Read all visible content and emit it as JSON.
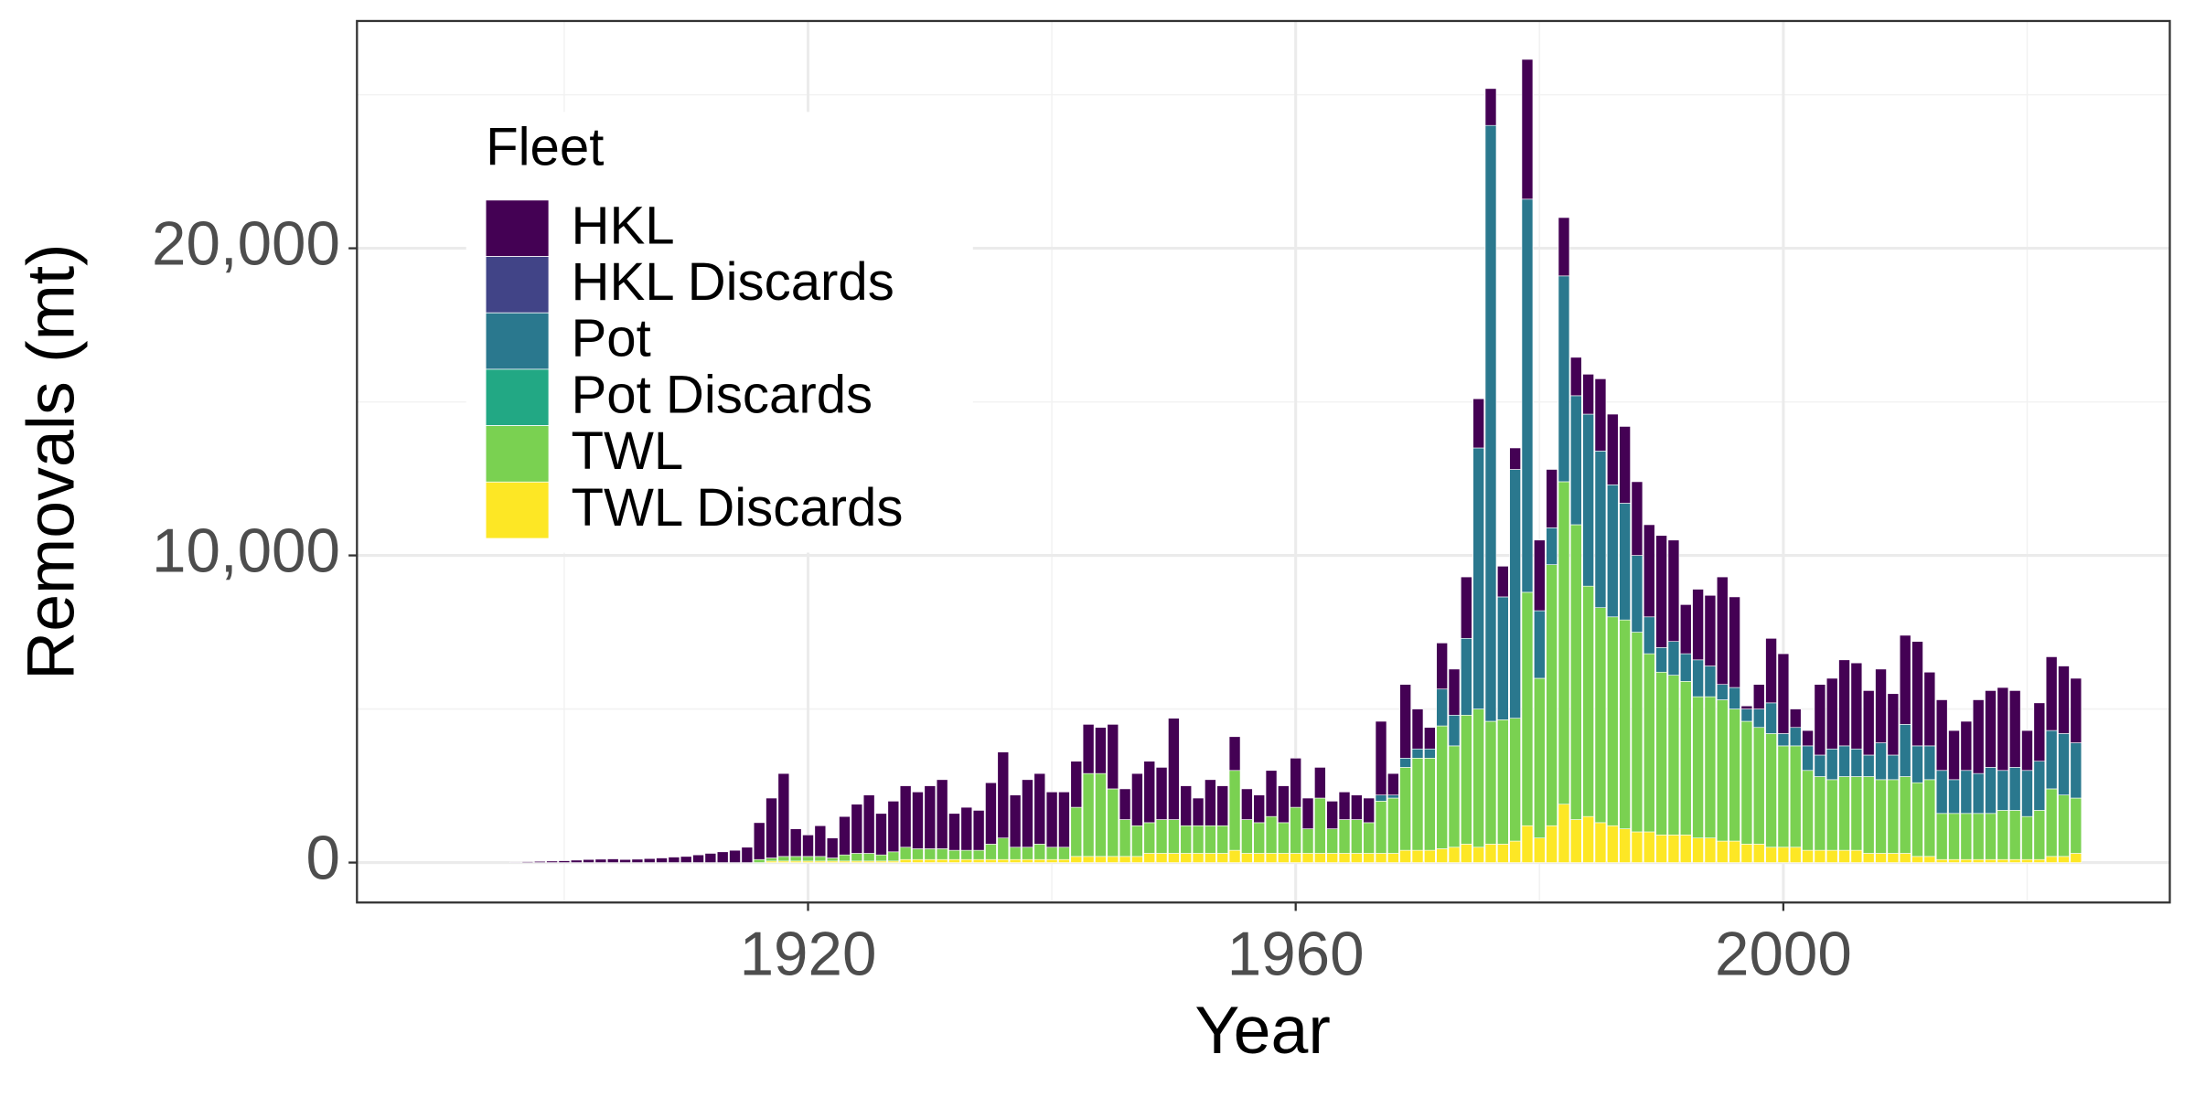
{
  "chart_data": {
    "type": "stacked-bar",
    "x_label": "Year",
    "y_label": "Removals (mt)",
    "legend_title": "Fleet",
    "legend": "top-left",
    "grid": true,
    "xlim": [
      1883,
      2031.7
    ],
    "xticks": [
      1920,
      1960,
      2000
    ],
    "x_minor_ticks": [
      1900,
      1940,
      1980,
      2020
    ],
    "ylim": [
      -1300,
      27400
    ],
    "yticks": [
      0,
      {
        "value": 10000,
        "label": "10,000"
      },
      {
        "value": 20000,
        "label": "20,000"
      }
    ],
    "y_minor_ticks": [
      5000,
      15000,
      25000
    ],
    "x": [
      1896,
      1897,
      1898,
      1899,
      1900,
      1901,
      1902,
      1903,
      1904,
      1905,
      1906,
      1907,
      1908,
      1909,
      1910,
      1911,
      1912,
      1913,
      1914,
      1915,
      1916,
      1917,
      1918,
      1919,
      1920,
      1921,
      1922,
      1923,
      1924,
      1925,
      1926,
      1927,
      1928,
      1929,
      1930,
      1931,
      1932,
      1933,
      1934,
      1935,
      1936,
      1937,
      1938,
      1939,
      1940,
      1941,
      1942,
      1943,
      1944,
      1945,
      1946,
      1947,
      1948,
      1949,
      1950,
      1951,
      1952,
      1953,
      1954,
      1955,
      1956,
      1957,
      1958,
      1959,
      1960,
      1961,
      1962,
      1963,
      1964,
      1965,
      1966,
      1967,
      1968,
      1969,
      1970,
      1971,
      1972,
      1973,
      1974,
      1975,
      1976,
      1977,
      1978,
      1979,
      1980,
      1981,
      1982,
      1983,
      1984,
      1985,
      1986,
      1987,
      1988,
      1989,
      1990,
      1991,
      1992,
      1993,
      1994,
      1995,
      1996,
      1997,
      1998,
      1999,
      2000,
      2001,
      2002,
      2003,
      2004,
      2005,
      2006,
      2007,
      2008,
      2009,
      2010,
      2011,
      2012,
      2013,
      2014,
      2015,
      2016,
      2017,
      2018,
      2019,
      2020,
      2021,
      2022,
      2023,
      2024
    ],
    "series": [
      {
        "name": "HKL",
        "color": "#440154",
        "values": [
          20,
          30,
          40,
          50,
          60,
          80,
          100,
          110,
          120,
          100,
          110,
          130,
          150,
          180,
          200,
          250,
          300,
          350,
          400,
          500,
          1200,
          1950,
          2700,
          900,
          700,
          1000,
          650,
          1250,
          1600,
          1900,
          1350,
          1650,
          2000,
          1850,
          2050,
          2250,
          1200,
          1400,
          1300,
          2000,
          2800,
          1700,
          2200,
          2300,
          1800,
          1800,
          1500,
          1600,
          1500,
          2100,
          1000,
          1700,
          2000,
          1700,
          3300,
          1300,
          900,
          1500,
          1300,
          1100,
          1000,
          900,
          1500,
          1200,
          1600,
          1000,
          1000,
          900,
          900,
          800,
          800,
          2400,
          700,
          2400,
          1300,
          700,
          1500,
          1500,
          2000,
          1600,
          1200,
          1000,
          700,
          4550,
          2300,
          1900,
          1900,
          1250,
          1300,
          2350,
          2300,
          2500,
          2400,
          3000,
          3650,
          3300,
          1600,
          2300,
          2300,
          3500,
          2950,
          100,
          800,
          2100,
          2600,
          600,
          500,
          2300,
          2300,
          2800,
          2800,
          2100,
          2400,
          2000,
          2900,
          3400,
          2400,
          2300,
          1600,
          1600,
          2400,
          2500,
          2700,
          2500,
          1300,
          1900,
          2400,
          2200,
          2100
        ]
      },
      {
        "name": "HKL Discards",
        "color": "#414487",
        "values": [
          0,
          0,
          0,
          0,
          0,
          0,
          0,
          0,
          0,
          0,
          0,
          0,
          0,
          0,
          0,
          0,
          0,
          0,
          0,
          0,
          0,
          0,
          0,
          0,
          0,
          0,
          0,
          0,
          0,
          0,
          0,
          0,
          0,
          0,
          0,
          0,
          0,
          0,
          0,
          0,
          0,
          0,
          0,
          0,
          0,
          0,
          0,
          0,
          0,
          0,
          0,
          0,
          0,
          0,
          0,
          0,
          0,
          0,
          0,
          0,
          0,
          0,
          0,
          0,
          0,
          0,
          0,
          0,
          0,
          0,
          0,
          0,
          0,
          0,
          0,
          0,
          0,
          0,
          0,
          0,
          0,
          0,
          0,
          0,
          0,
          0,
          0,
          0,
          0,
          0,
          0,
          0,
          0,
          0,
          0,
          0,
          0,
          0,
          0,
          0,
          0,
          0,
          0,
          0,
          0,
          0,
          0,
          0,
          0,
          0,
          0,
          0,
          0,
          0,
          0,
          0,
          0,
          0,
          0,
          0,
          0,
          0,
          0,
          0,
          0,
          0,
          0,
          0,
          0
        ]
      },
      {
        "name": "Pot",
        "color": "#2A788E",
        "values": [
          0,
          0,
          0,
          0,
          0,
          0,
          0,
          0,
          0,
          0,
          0,
          0,
          0,
          0,
          0,
          0,
          0,
          0,
          0,
          0,
          0,
          0,
          0,
          0,
          0,
          0,
          0,
          0,
          0,
          0,
          0,
          0,
          0,
          0,
          0,
          0,
          0,
          0,
          0,
          0,
          0,
          0,
          0,
          0,
          0,
          0,
          0,
          0,
          0,
          0,
          0,
          0,
          0,
          0,
          0,
          0,
          0,
          0,
          0,
          0,
          0,
          0,
          0,
          0,
          0,
          0,
          0,
          0,
          0,
          0,
          0,
          200,
          100,
          300,
          300,
          300,
          1200,
          1000,
          2500,
          8500,
          19400,
          4000,
          8100,
          12800,
          2200,
          1200,
          6700,
          4200,
          5600,
          5100,
          4300,
          3800,
          2500,
          1200,
          800,
          1100,
          900,
          1200,
          1000,
          500,
          700,
          400,
          600,
          1000,
          400,
          600,
          800,
          700,
          1000,
          1000,
          900,
          700,
          1200,
          800,
          1700,
          1200,
          1100,
          1400,
          1100,
          1400,
          1300,
          1500,
          1300,
          1400,
          1500,
          1600,
          1900,
          2000,
          1800
        ]
      },
      {
        "name": "Pot Discards",
        "color": "#22A884",
        "values": [
          0,
          0,
          0,
          0,
          0,
          0,
          0,
          0,
          0,
          0,
          0,
          0,
          0,
          0,
          0,
          0,
          0,
          0,
          0,
          0,
          0,
          0,
          0,
          0,
          0,
          0,
          0,
          0,
          0,
          0,
          0,
          0,
          0,
          0,
          0,
          0,
          0,
          0,
          0,
          0,
          0,
          0,
          0,
          0,
          0,
          0,
          0,
          0,
          0,
          0,
          0,
          0,
          0,
          0,
          0,
          0,
          0,
          0,
          0,
          0,
          0,
          0,
          0,
          0,
          0,
          0,
          0,
          0,
          0,
          0,
          0,
          0,
          0,
          0,
          0,
          0,
          0,
          0,
          0,
          0,
          0,
          0,
          0,
          0,
          0,
          0,
          0,
          0,
          0,
          0,
          0,
          0,
          0,
          0,
          0,
          0,
          0,
          0,
          0,
          0,
          0,
          0,
          0,
          0,
          0,
          0,
          0,
          0,
          0,
          0,
          0,
          0,
          0,
          0,
          0,
          0,
          0,
          0,
          0,
          0,
          0,
          0,
          0,
          0,
          0,
          0,
          0,
          0,
          0
        ]
      },
      {
        "name": "TWL",
        "color": "#7AD151",
        "values": [
          0,
          0,
          0,
          0,
          0,
          0,
          0,
          0,
          0,
          0,
          0,
          0,
          0,
          0,
          0,
          0,
          0,
          0,
          0,
          0,
          100,
          100,
          150,
          150,
          150,
          150,
          100,
          200,
          250,
          250,
          200,
          300,
          400,
          350,
          350,
          350,
          300,
          300,
          300,
          500,
          700,
          400,
          400,
          500,
          400,
          400,
          1600,
          2700,
          2700,
          2200,
          1200,
          1000,
          1000,
          1100,
          1100,
          900,
          900,
          900,
          900,
          2600,
          1100,
          1000,
          1200,
          1000,
          1500,
          800,
          1800,
          800,
          1100,
          1100,
          1000,
          1700,
          1800,
          2700,
          3000,
          3000,
          4000,
          3300,
          4200,
          4500,
          4000,
          4050,
          4000,
          7600,
          5200,
          8500,
          10500,
          9600,
          7500,
          7000,
          6800,
          6800,
          6500,
          5800,
          5300,
          5200,
          5000,
          4600,
          4600,
          4600,
          4300,
          4000,
          3800,
          3700,
          3300,
          3300,
          2600,
          2400,
          2300,
          2400,
          2400,
          2500,
          2400,
          2400,
          2500,
          2400,
          2500,
          1500,
          1500,
          1500,
          1500,
          1500,
          1600,
          1600,
          1400,
          1600,
          2200,
          2000,
          1800
        ]
      },
      {
        "name": "TWL Discards",
        "color": "#FDE725",
        "values": [
          0,
          0,
          0,
          0,
          0,
          0,
          0,
          0,
          0,
          0,
          0,
          0,
          0,
          0,
          0,
          0,
          0,
          0,
          0,
          0,
          0,
          50,
          50,
          50,
          50,
          50,
          50,
          50,
          50,
          50,
          50,
          50,
          100,
          100,
          100,
          100,
          100,
          100,
          100,
          100,
          100,
          100,
          100,
          100,
          100,
          100,
          200,
          200,
          200,
          200,
          200,
          200,
          300,
          300,
          300,
          300,
          300,
          300,
          300,
          400,
          300,
          300,
          300,
          300,
          300,
          300,
          300,
          300,
          300,
          300,
          300,
          300,
          300,
          400,
          400,
          400,
          450,
          500,
          600,
          500,
          600,
          600,
          700,
          1200,
          800,
          1200,
          1900,
          1400,
          1500,
          1300,
          1200,
          1100,
          1000,
          1000,
          900,
          900,
          900,
          800,
          800,
          700,
          700,
          600,
          600,
          500,
          500,
          500,
          400,
          400,
          400,
          400,
          400,
          300,
          300,
          300,
          300,
          200,
          200,
          100,
          100,
          100,
          100,
          100,
          100,
          100,
          100,
          100,
          200,
          200,
          300
        ]
      }
    ]
  }
}
